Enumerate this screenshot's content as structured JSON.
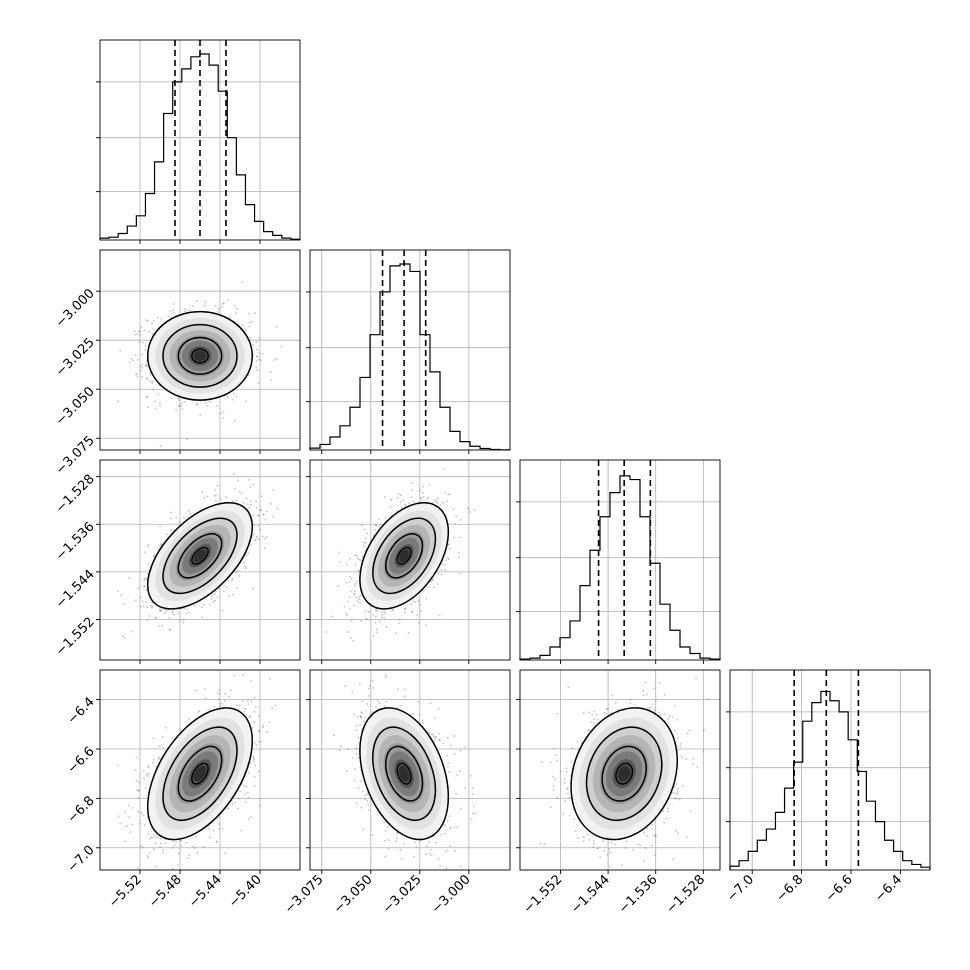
{
  "chart_data": {
    "type": "corner-plot",
    "title": "",
    "parameters": [
      {
        "name": "",
        "range": [
          -5.56,
          -5.36
        ],
        "ticks": [
          -5.52,
          -5.48,
          -5.44,
          -5.4
        ],
        "tick_labels": [
          "−5.52",
          "−5.48",
          "−5.44",
          "−5.40"
        ]
      },
      {
        "name": "",
        "range": [
          -3.081,
          -2.979
        ],
        "ticks": [
          -3.075,
          -3.05,
          -3.025,
          -3.0
        ],
        "tick_labels": [
          "−3.075",
          "−3.050",
          "−3.025",
          "−3.000"
        ]
      },
      {
        "name": "",
        "range": [
          -1.5588,
          -1.5252
        ],
        "ticks": [
          -1.552,
          -1.544,
          -1.536,
          -1.528
        ],
        "tick_labels": [
          "−1.552",
          "−1.544",
          "−1.536",
          "−1.528"
        ]
      },
      {
        "name": "",
        "range": [
          -7.09,
          -6.28
        ],
        "ticks": [
          -7.0,
          -6.8,
          -6.6,
          -6.4
        ],
        "tick_labels": [
          "−7.0",
          "−6.8",
          "−6.6",
          "−6.4"
        ]
      }
    ],
    "quantiles": [
      [
        -5.485,
        -5.46,
        -5.434
      ],
      [
        -3.044,
        -3.033,
        -3.022
      ],
      [
        -1.5456,
        -1.5413,
        -1.5369
      ],
      [
        -6.83,
        -6.7,
        -6.57
      ]
    ],
    "histograms": [
      [
        0.01,
        0.015,
        0.035,
        0.075,
        0.13,
        0.25,
        0.42,
        0.68,
        0.85,
        0.92,
        0.985,
        1.0,
        0.94,
        0.8,
        0.55,
        0.35,
        0.19,
        0.1,
        0.045,
        0.025,
        0.01,
        0.004
      ],
      [
        0.01,
        0.03,
        0.07,
        0.13,
        0.23,
        0.39,
        0.62,
        0.85,
        0.99,
        1.0,
        0.96,
        0.62,
        0.42,
        0.23,
        0.1,
        0.045,
        0.02,
        0.008,
        0.003,
        0.001
      ],
      [
        0.005,
        0.01,
        0.025,
        0.07,
        0.12,
        0.21,
        0.4,
        0.59,
        0.77,
        0.9,
        0.99,
        0.97,
        0.77,
        0.52,
        0.3,
        0.16,
        0.07,
        0.035,
        0.01,
        0.005
      ],
      [
        0.02,
        0.05,
        0.1,
        0.16,
        0.22,
        0.31,
        0.44,
        0.58,
        0.8,
        0.9,
        0.96,
        0.91,
        0.85,
        0.7,
        0.53,
        0.37,
        0.26,
        0.16,
        0.1,
        0.05,
        0.03,
        0.015
      ]
    ],
    "correlations": [
      [
        1,
        0.0,
        0.55,
        0.5
      ],
      [
        0.0,
        1,
        0.45,
        -0.35
      ],
      [
        0.55,
        0.45,
        1,
        0.2
      ],
      [
        0.5,
        -0.35,
        0.2,
        1
      ]
    ],
    "grid": true,
    "legend": "none"
  }
}
